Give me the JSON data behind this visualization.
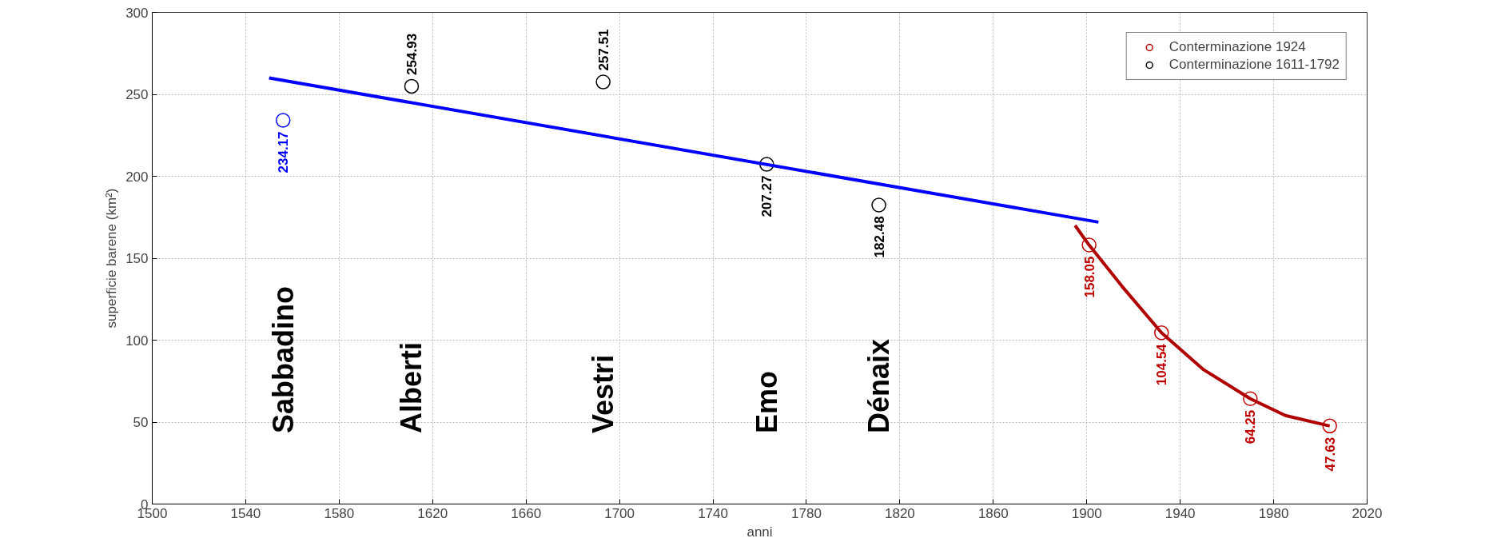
{
  "chart_data": {
    "type": "scatter",
    "xlabel": "anni",
    "ylabel": "superficie barene (km²)",
    "xlim": [
      1500,
      2020
    ],
    "xticks": [
      1500,
      1540,
      1580,
      1620,
      1660,
      1700,
      1740,
      1780,
      1820,
      1860,
      1900,
      1940,
      1980,
      2020
    ],
    "ylim": [
      0,
      300
    ],
    "yticks": [
      0,
      50,
      100,
      150,
      200,
      250,
      300
    ],
    "grid": true,
    "legend": "top right",
    "marker": "circle",
    "series": [
      {
        "color": "#0000ff",
        "x": [
          1556
        ],
        "values": [
          234.17
        ],
        "value_labels": [
          "234.17"
        ]
      },
      {
        "name": "Conterminazione 1611-1792",
        "color": "#000000",
        "x": [
          1611,
          1693,
          1763,
          1811
        ],
        "values": [
          254.93,
          257.51,
          207.27,
          182.48
        ],
        "value_labels": [
          "254.93",
          "257.51",
          "207.27",
          "182.48"
        ]
      },
      {
        "name": "Conterminazione 1924",
        "color": "#c00000",
        "x": [
          1901,
          1932,
          1970,
          2004
        ],
        "values": [
          158.05,
          104.54,
          64.25,
          47.63
        ],
        "value_labels": [
          "158.05",
          "104.54",
          "64.25",
          "47.63"
        ]
      },
      {
        "type": "line",
        "marker": "none",
        "color": "#0000ff",
        "x": [
          1550,
          1905
        ],
        "values": [
          260,
          172
        ]
      },
      {
        "type": "line",
        "marker": "none",
        "color": "#b00000",
        "x": [
          1895,
          1901,
          1915,
          1932,
          1950,
          1970,
          1985,
          2004
        ],
        "values": [
          170,
          158,
          133,
          104.5,
          82,
          64.3,
          54,
          47.6
        ]
      }
    ],
    "annotations": [
      "Sabbadino",
      "Alberti",
      "Vestri",
      "Emo",
      "Dénaix"
    ]
  }
}
